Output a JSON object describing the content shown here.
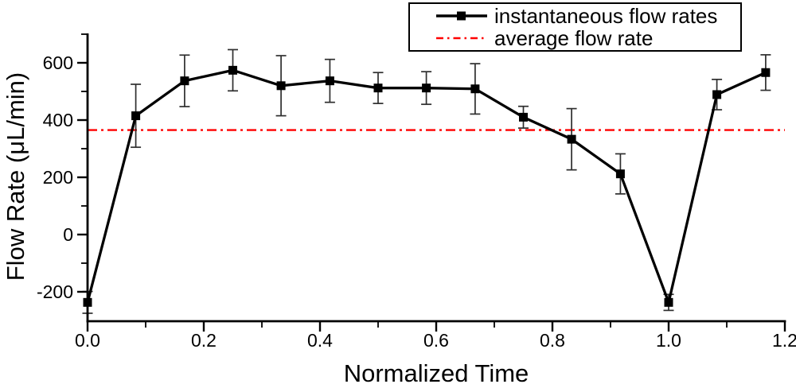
{
  "figure": {
    "background": "#ffffff"
  },
  "chart_data": {
    "type": "line",
    "xlabel": "Normalized Time",
    "ylabel": "Flow Rate (μL/min)",
    "xlim": [
      0,
      1.2
    ],
    "ylim": [
      -300,
      700
    ],
    "grid": false,
    "legend_position": "top-right",
    "x_major_ticks": [
      0.0,
      0.2,
      0.4,
      0.6,
      0.8,
      1.0,
      1.2
    ],
    "x_tick_labels": [
      "0.0",
      "0.2",
      "0.4",
      "0.6",
      "0.8",
      "1.0",
      "1.2"
    ],
    "x_minor_ticks": [
      0.1,
      0.3,
      0.5,
      0.7,
      0.9,
      1.1
    ],
    "y_major_ticks": [
      -200,
      0,
      200,
      400,
      600
    ],
    "y_tick_labels": [
      "-200",
      "0",
      "200",
      "400",
      "600"
    ],
    "y_minor_ticks": [
      -100,
      100,
      300,
      500,
      700
    ],
    "series": [
      {
        "name": "instantaneous flow rates",
        "color": "#000000",
        "marker": "square",
        "line_style": "solid",
        "x": [
          0.0,
          0.083,
          0.167,
          0.25,
          0.333,
          0.417,
          0.5,
          0.583,
          0.667,
          0.75,
          0.833,
          0.917,
          1.0,
          1.083,
          1.167
        ],
        "y": [
          -237,
          415,
          537,
          574,
          520,
          537,
          512,
          512,
          509,
          410,
          333,
          212,
          -237,
          489,
          566
        ],
        "yerr": [
          38,
          110,
          90,
          72,
          105,
          75,
          54,
          57,
          88,
          38,
          107,
          70,
          28,
          53,
          62
        ]
      }
    ],
    "average_line": {
      "label": "average flow rate",
      "value": 365,
      "color": "#ff0000",
      "style": "dash-dot"
    }
  }
}
